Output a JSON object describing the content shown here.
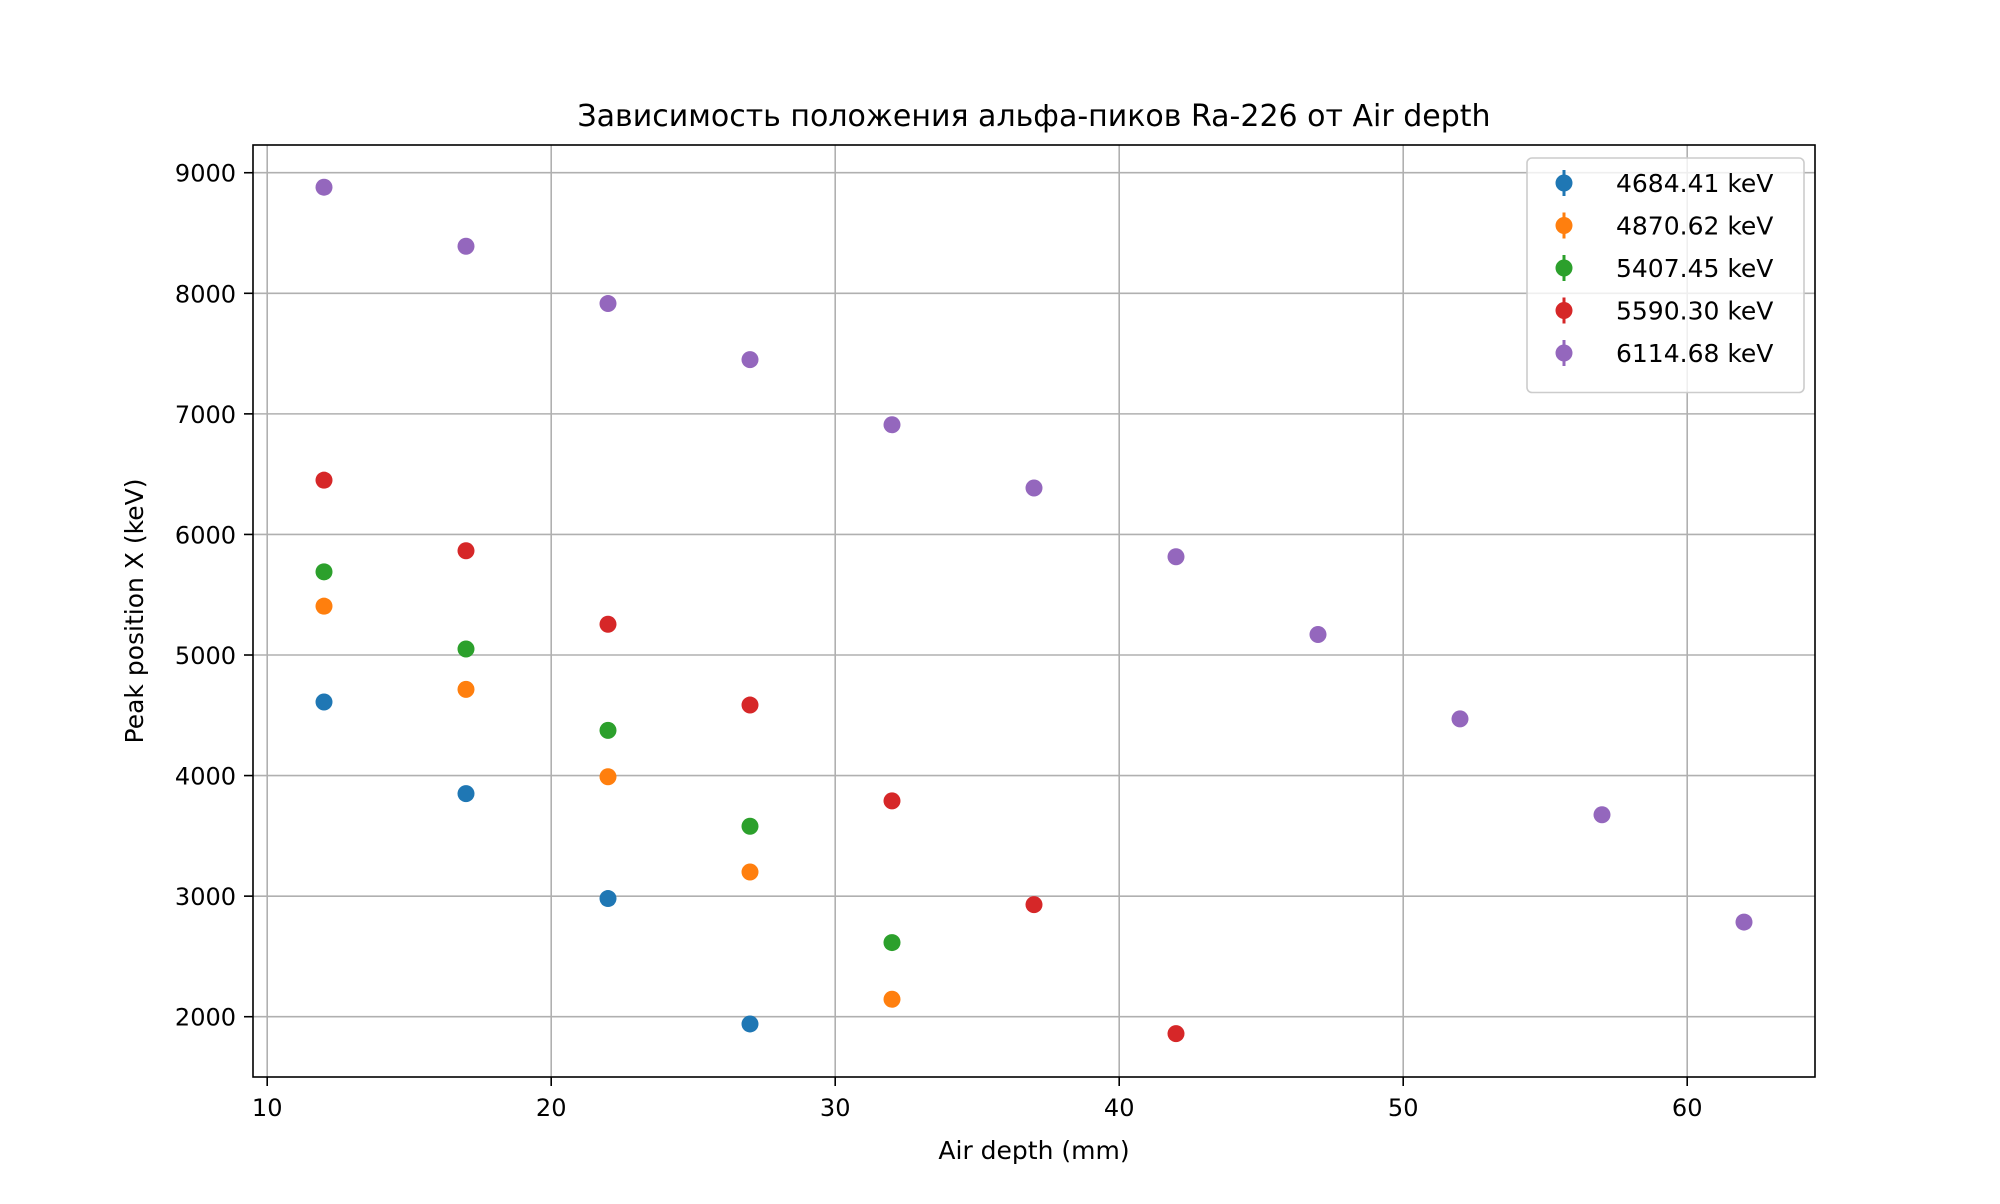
{
  "chart_data": {
    "type": "scatter",
    "title": "Зависимость положения альфа-пиков Ra-226 от Air depth",
    "xlabel": "Air depth (mm)",
    "ylabel": "Peak position X (keV)",
    "xlim": [
      9.5,
      64.5
    ],
    "ylim": [
      1500,
      9230
    ],
    "xticks": [
      10,
      20,
      30,
      40,
      50,
      60
    ],
    "yticks": [
      2000,
      3000,
      4000,
      5000,
      6000,
      7000,
      8000,
      9000
    ],
    "grid": true,
    "legend_position": "top-right",
    "series": [
      {
        "name": "4684.41 keV",
        "color": "#1f77b4",
        "points": [
          [
            12,
            4610
          ],
          [
            17,
            3850
          ],
          [
            22,
            2980
          ],
          [
            27,
            1940
          ]
        ]
      },
      {
        "name": "4870.62 keV",
        "color": "#ff7f0e",
        "points": [
          [
            12,
            5405
          ],
          [
            17,
            4715
          ],
          [
            22,
            3990
          ],
          [
            27,
            3200
          ],
          [
            32,
            2145
          ]
        ]
      },
      {
        "name": "5407.45 keV",
        "color": "#2ca02c",
        "points": [
          [
            12,
            5690
          ],
          [
            17,
            5050
          ],
          [
            22,
            4375
          ],
          [
            27,
            3580
          ],
          [
            32,
            2615
          ]
        ]
      },
      {
        "name": "5590.30 keV",
        "color": "#d62728",
        "points": [
          [
            12,
            6450
          ],
          [
            17,
            5865
          ],
          [
            22,
            5255
          ],
          [
            27,
            4585
          ],
          [
            32,
            3790
          ],
          [
            37,
            2930
          ],
          [
            42,
            1860
          ]
        ]
      },
      {
        "name": "6114.68 keV",
        "color": "#9467bd",
        "points": [
          [
            12,
            8880
          ],
          [
            17,
            8390
          ],
          [
            22,
            7915
          ],
          [
            27,
            7450
          ],
          [
            32,
            6910
          ],
          [
            37,
            6385
          ],
          [
            42,
            5815
          ],
          [
            47,
            5170
          ],
          [
            52,
            4470
          ],
          [
            57,
            3675
          ],
          [
            62,
            2785
          ]
        ]
      }
    ]
  }
}
